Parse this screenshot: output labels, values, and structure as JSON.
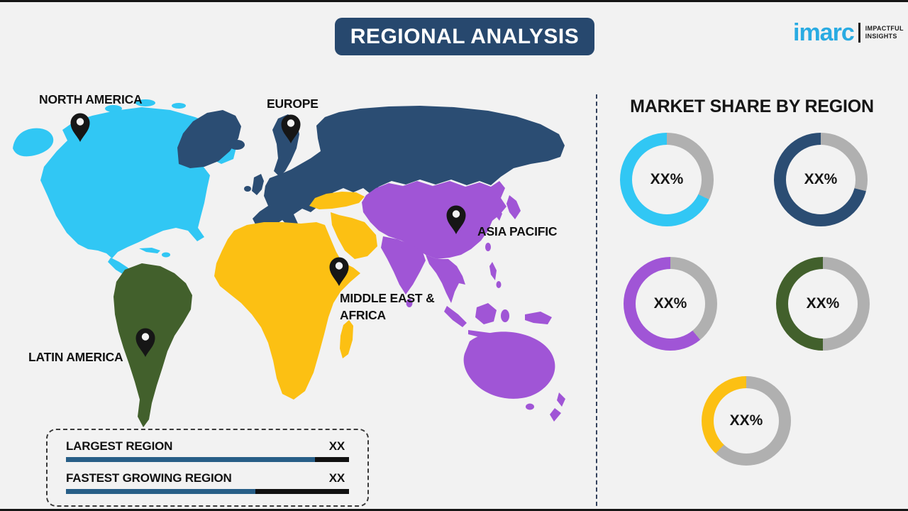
{
  "title": "REGIONAL ANALYSIS",
  "logo": {
    "brand": "imarc",
    "tagline_line1": "IMPACTFUL",
    "tagline_line2": "INSIGHTS"
  },
  "colors": {
    "navy": "#27486E",
    "brandBlue": "#29ABE2",
    "barBlue": "#275E87",
    "track": "#B0B0B0",
    "background": "#F2F2F2"
  },
  "map": {
    "regions": [
      {
        "id": "north-america",
        "label": "NORTH AMERICA",
        "color": "#31C7F4"
      },
      {
        "id": "europe",
        "label": "EUROPE",
        "color": "#2B4D73"
      },
      {
        "id": "asia-pacific",
        "label": "ASIA PACIFIC",
        "color": "#A055D6"
      },
      {
        "id": "middle-east-africa",
        "label": "MIDDLE EAST & AFRICA",
        "color": "#FCC013"
      },
      {
        "id": "latin-america",
        "label": "LATIN AMERICA",
        "color": "#42602C"
      }
    ]
  },
  "market_share": {
    "title": "MARKET SHARE BY REGION",
    "donuts": [
      {
        "region": "north-america",
        "label": "XX%",
        "color": "#31C7F4",
        "visual_fraction_pct": 68
      },
      {
        "region": "europe",
        "label": "XX%",
        "color": "#2B4D73",
        "visual_fraction_pct": 71
      },
      {
        "region": "asia-pacific",
        "label": "XX%",
        "color": "#A055D6",
        "visual_fraction_pct": 61
      },
      {
        "region": "latin-america",
        "label": "XX%",
        "color": "#42602C",
        "visual_fraction_pct": 50
      },
      {
        "region": "middle-east-africa",
        "label": "XX%",
        "color": "#FCC013",
        "visual_fraction_pct": 38
      }
    ]
  },
  "legend": {
    "rows": [
      {
        "label": "LARGEST REGION",
        "value": "XX",
        "bar_fill_pct": 88
      },
      {
        "label": "FASTEST GROWING REGION",
        "value": "XX",
        "bar_fill_pct": 67
      }
    ]
  }
}
